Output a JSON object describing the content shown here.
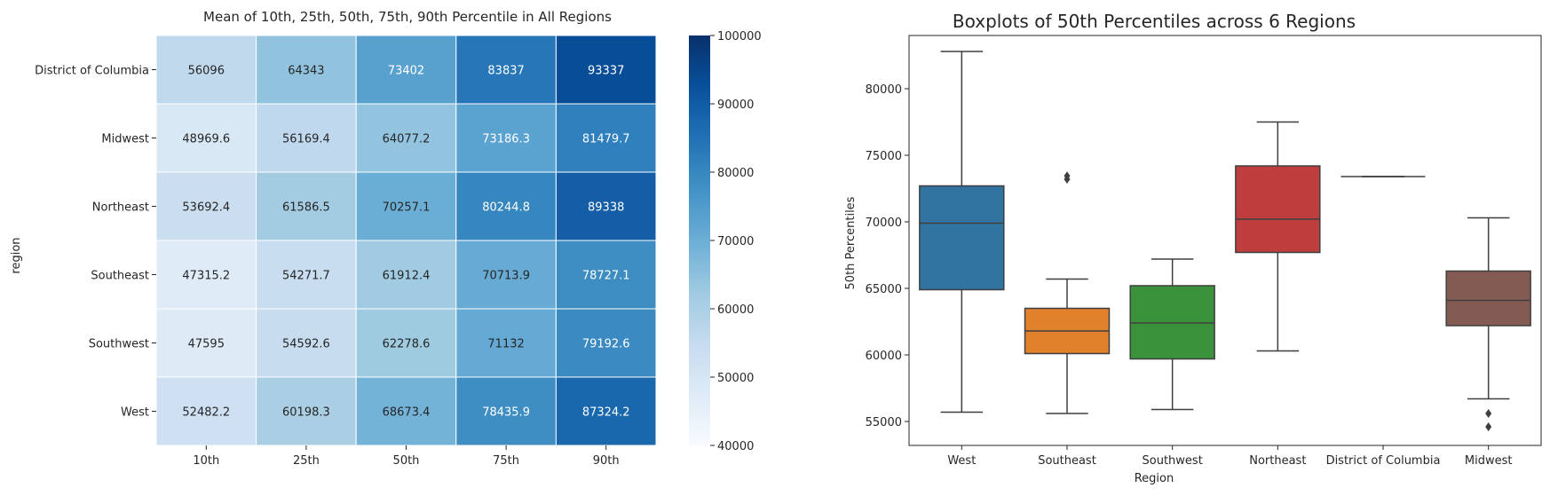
{
  "chart_data": [
    {
      "type": "heatmap",
      "title": "Mean of 10th, 25th, 50th, 75th, 90th Percentile in All Regions",
      "ylabel": "region",
      "xlabel": "",
      "x_categories": [
        "10th",
        "25th",
        "50th",
        "75th",
        "90th"
      ],
      "y_categories": [
        "District of Columbia",
        "Midwest",
        "Northeast",
        "Southeast",
        "Southwest",
        "West"
      ],
      "values": [
        [
          56096,
          64343,
          73402,
          83837,
          93337
        ],
        [
          48969.6,
          56169.4,
          64077.2,
          73186.3,
          81479.7
        ],
        [
          53692.4,
          61586.5,
          70257.1,
          80244.8,
          89338
        ],
        [
          47315.2,
          54271.7,
          61912.4,
          70713.9,
          78727.1
        ],
        [
          47595,
          54592.6,
          62278.6,
          71132,
          79192.6
        ],
        [
          52482.2,
          60198.3,
          68673.4,
          78435.9,
          87324.2
        ]
      ],
      "colorbar": {
        "min": 40000,
        "max": 100000,
        "ticks": [
          "40000",
          "50000",
          "60000",
          "70000",
          "80000",
          "90000",
          "100000"
        ],
        "colormap": "Blues"
      }
    },
    {
      "type": "boxplot",
      "title": "Boxplots of 50th Percentiles across 6 Regions",
      "xlabel": "Region",
      "ylabel": "50th Percentiles",
      "ylim": [
        53200,
        84000
      ],
      "y_ticks": [
        55000,
        60000,
        65000,
        70000,
        75000,
        80000
      ],
      "categories": [
        "West",
        "Southeast",
        "Southwest",
        "Northeast",
        "District of Columbia",
        "Midwest"
      ],
      "colors": [
        "#3274a1",
        "#e1812c",
        "#3a923a",
        "#c03d3e",
        "#9372b2",
        "#845b53"
      ],
      "boxes": [
        {
          "whisker_low": 55700,
          "q1": 64900,
          "median": 69900,
          "q3": 72700,
          "whisker_high": 82800,
          "outliers": []
        },
        {
          "whisker_low": 55600,
          "q1": 60100,
          "median": 61800,
          "q3": 63500,
          "whisker_high": 65700,
          "outliers": [
            73200,
            73450
          ]
        },
        {
          "whisker_low": 55900,
          "q1": 59700,
          "median": 62400,
          "q3": 65200,
          "whisker_high": 67200,
          "outliers": []
        },
        {
          "whisker_low": 60300,
          "q1": 67700,
          "median": 70200,
          "q3": 74200,
          "whisker_high": 77500,
          "outliers": []
        },
        {
          "whisker_low": 73400,
          "q1": 73400,
          "median": 73400,
          "q3": 73400,
          "whisker_high": 73400,
          "outliers": []
        },
        {
          "whisker_low": 56700,
          "q1": 62200,
          "median": 64100,
          "q3": 66300,
          "whisker_high": 70300,
          "outliers": [
            55600,
            54600
          ]
        }
      ]
    }
  ]
}
